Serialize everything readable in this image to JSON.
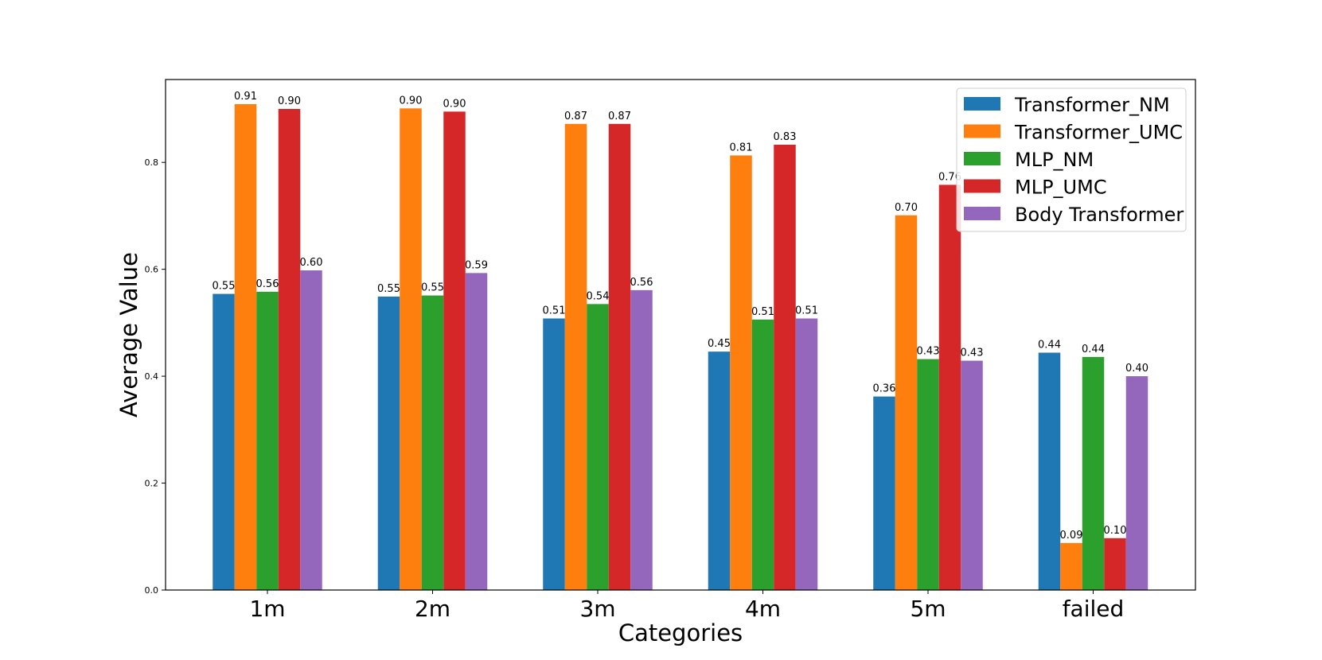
{
  "chart_data": {
    "type": "bar",
    "title": "",
    "xlabel": "Categories",
    "ylabel": "Average Value",
    "ylim": [
      0,
      0.955
    ],
    "yticks": [
      0.0,
      0.2,
      0.4,
      0.6,
      0.8
    ],
    "ytick_labels": [
      "0.0",
      "0.2",
      "0.4",
      "0.6",
      "0.8"
    ],
    "grid": false,
    "legend_position": "top-right",
    "categories": [
      "1m",
      "2m",
      "3m",
      "4m",
      "5m",
      "failed"
    ],
    "series": [
      {
        "name": "Transformer_NM",
        "color": "#1f77b4",
        "values": [
          0.554,
          0.549,
          0.508,
          0.446,
          0.362,
          0.444
        ],
        "labels": [
          "0.55",
          "0.55",
          "0.51",
          "0.45",
          "0.36",
          "0.44"
        ]
      },
      {
        "name": "Transformer_UMC",
        "color": "#ff7f0e",
        "values": [
          0.909,
          0.901,
          0.872,
          0.813,
          0.701,
          0.088
        ],
        "labels": [
          "0.91",
          "0.90",
          "0.87",
          "0.81",
          "0.70",
          "0.09"
        ]
      },
      {
        "name": "MLP_NM",
        "color": "#2ca02c",
        "values": [
          0.558,
          0.551,
          0.535,
          0.506,
          0.432,
          0.436
        ],
        "labels": [
          "0.56",
          "0.55",
          "0.54",
          "0.51",
          "0.43",
          "0.44"
        ]
      },
      {
        "name": "MLP_UMC",
        "color": "#d62728",
        "values": [
          0.9,
          0.895,
          0.872,
          0.833,
          0.758,
          0.097
        ],
        "labels": [
          "0.90",
          "0.90",
          "0.87",
          "0.83",
          "0.76",
          "0.10"
        ]
      },
      {
        "name": "Body Transformer",
        "color": "#9467bd",
        "values": [
          0.598,
          0.593,
          0.561,
          0.508,
          0.429,
          0.4
        ],
        "labels": [
          "0.60",
          "0.59",
          "0.56",
          "0.51",
          "0.43",
          "0.40"
        ]
      }
    ]
  }
}
